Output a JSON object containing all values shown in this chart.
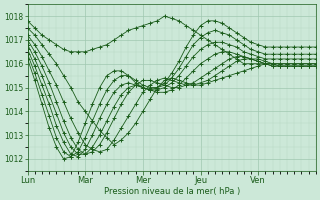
{
  "bg_color": "#cce8d8",
  "plot_bg": "#cce8d8",
  "grid_color_major": "#a0c8b0",
  "grid_color_minor": "#b8d8c0",
  "line_color": "#1a5c1a",
  "xlabel": "Pression niveau de la mer( hPa )",
  "ylim": [
    1011.5,
    1018.5
  ],
  "yticks": [
    1012,
    1013,
    1014,
    1015,
    1016,
    1017,
    1018
  ],
  "day_labels": [
    "Lun",
    "Mar",
    "Mer",
    "Jeu",
    "Ven"
  ],
  "day_positions": [
    0,
    24,
    48,
    72,
    96
  ],
  "figsize": [
    3.2,
    2.0
  ],
  "dpi": 100,
  "series": [
    {
      "x": [
        0,
        3,
        6,
        9,
        12,
        15,
        18,
        21,
        24,
        27,
        30,
        33,
        36,
        39,
        42,
        45,
        48,
        51,
        54,
        57,
        60,
        63,
        66,
        69,
        72,
        75,
        78,
        81,
        84,
        87,
        90,
        93,
        96,
        99,
        102,
        105,
        108,
        111,
        114,
        117,
        120
      ],
      "y": [
        1017.8,
        1017.5,
        1017.2,
        1017.0,
        1016.8,
        1016.6,
        1016.5,
        1016.5,
        1016.5,
        1016.6,
        1016.7,
        1016.8,
        1017.0,
        1017.2,
        1017.4,
        1017.5,
        1017.6,
        1017.7,
        1017.8,
        1018.0,
        1017.9,
        1017.8,
        1017.6,
        1017.4,
        1017.2,
        1017.0,
        1016.8,
        1016.6,
        1016.4,
        1016.2,
        1016.0,
        1016.0,
        1016.0,
        1016.0,
        1016.0,
        1016.0,
        1016.0,
        1016.0,
        1016.0,
        1016.0,
        1016.0
      ]
    },
    {
      "x": [
        0,
        3,
        6,
        9,
        12,
        15,
        18,
        21,
        24,
        27,
        30,
        33,
        36,
        39,
        42,
        45,
        48,
        51,
        54,
        57,
        60,
        63,
        66,
        69,
        72,
        75,
        78,
        81,
        84,
        87,
        90,
        93,
        96,
        99,
        102,
        105,
        108,
        111,
        114,
        117,
        120
      ],
      "y": [
        1017.5,
        1017.2,
        1016.8,
        1016.4,
        1016.0,
        1015.5,
        1015.0,
        1014.4,
        1014.0,
        1013.6,
        1013.2,
        1012.9,
        1012.6,
        1012.8,
        1013.1,
        1013.5,
        1014.0,
        1014.5,
        1015.0,
        1015.3,
        1015.4,
        1015.3,
        1015.2,
        1015.1,
        1015.1,
        1015.2,
        1015.3,
        1015.4,
        1015.5,
        1015.6,
        1015.7,
        1015.8,
        1015.9,
        1016.0,
        1016.0,
        1016.0,
        1016.0,
        1016.0,
        1016.0,
        1016.0,
        1016.0
      ]
    },
    {
      "x": [
        0,
        3,
        6,
        9,
        12,
        15,
        18,
        21,
        24,
        27,
        30,
        33,
        36,
        39,
        42,
        45,
        48,
        51,
        54,
        57,
        60,
        63,
        66,
        69,
        72,
        75,
        78,
        81,
        84,
        87,
        90,
        93,
        96,
        99,
        102,
        105,
        108,
        111,
        114,
        117,
        120
      ],
      "y": [
        1017.2,
        1016.8,
        1016.3,
        1015.7,
        1015.1,
        1014.4,
        1013.7,
        1013.1,
        1012.6,
        1012.4,
        1012.3,
        1012.4,
        1012.8,
        1013.3,
        1013.8,
        1014.3,
        1014.8,
        1015.1,
        1015.3,
        1015.4,
        1015.3,
        1015.2,
        1015.1,
        1015.1,
        1015.2,
        1015.3,
        1015.5,
        1015.7,
        1015.9,
        1016.1,
        1016.2,
        1016.2,
        1016.2,
        1016.1,
        1016.0,
        1015.9,
        1015.9,
        1015.9,
        1015.9,
        1015.9,
        1015.9
      ]
    },
    {
      "x": [
        0,
        3,
        6,
        9,
        12,
        15,
        18,
        21,
        24,
        27,
        30,
        33,
        36,
        39,
        42,
        45,
        48,
        51,
        54,
        57,
        60,
        63,
        66,
        69,
        72,
        75,
        78,
        81,
        84,
        87,
        90,
        93,
        96,
        99,
        102,
        105,
        108,
        111,
        114,
        117,
        120
      ],
      "y": [
        1017.0,
        1016.5,
        1015.9,
        1015.2,
        1014.4,
        1013.6,
        1012.9,
        1012.4,
        1012.2,
        1012.3,
        1012.6,
        1013.1,
        1013.7,
        1014.3,
        1014.8,
        1015.1,
        1015.3,
        1015.3,
        1015.2,
        1015.1,
        1015.0,
        1015.0,
        1015.1,
        1015.2,
        1015.4,
        1015.6,
        1015.8,
        1016.0,
        1016.2,
        1016.3,
        1016.3,
        1016.2,
        1016.1,
        1016.0,
        1015.9,
        1015.9,
        1015.9,
        1015.9,
        1015.9,
        1015.9,
        1015.9
      ]
    },
    {
      "x": [
        0,
        3,
        6,
        9,
        12,
        15,
        18,
        21,
        24,
        27,
        30,
        33,
        36,
        39,
        42,
        45,
        48,
        51,
        54,
        57,
        60,
        63,
        66,
        69,
        72,
        75,
        78,
        81,
        84,
        87,
        90,
        93,
        96,
        99,
        102,
        105,
        108,
        111,
        114,
        117,
        120
      ],
      "y": [
        1016.8,
        1016.2,
        1015.5,
        1014.7,
        1013.9,
        1013.1,
        1012.5,
        1012.2,
        1012.2,
        1012.5,
        1013.0,
        1013.6,
        1014.2,
        1014.7,
        1015.0,
        1015.1,
        1015.0,
        1014.9,
        1014.8,
        1014.8,
        1014.9,
        1015.1,
        1015.4,
        1015.7,
        1016.0,
        1016.2,
        1016.4,
        1016.5,
        1016.5,
        1016.4,
        1016.3,
        1016.2,
        1016.1,
        1016.0,
        1015.9,
        1015.9,
        1015.9,
        1015.9,
        1015.9,
        1015.9,
        1015.9
      ]
    },
    {
      "x": [
        0,
        3,
        6,
        9,
        12,
        15,
        18,
        21,
        24,
        27,
        30,
        33,
        36,
        39,
        42,
        45,
        48,
        51,
        54,
        57,
        60,
        63,
        66,
        69,
        72,
        75,
        78,
        81,
        84,
        87,
        90,
        93,
        96,
        99,
        102,
        105,
        108,
        111,
        114,
        117,
        120
      ],
      "y": [
        1016.6,
        1015.9,
        1015.1,
        1014.3,
        1013.4,
        1012.7,
        1012.2,
        1012.1,
        1012.4,
        1013.0,
        1013.7,
        1014.3,
        1014.8,
        1015.1,
        1015.2,
        1015.1,
        1015.0,
        1014.9,
        1014.9,
        1015.0,
        1015.2,
        1015.5,
        1015.9,
        1016.3,
        1016.6,
        1016.8,
        1016.9,
        1016.9,
        1016.8,
        1016.7,
        1016.5,
        1016.4,
        1016.3,
        1016.2,
        1016.2,
        1016.2,
        1016.2,
        1016.2,
        1016.2,
        1016.2,
        1016.2
      ]
    },
    {
      "x": [
        0,
        3,
        6,
        9,
        12,
        15,
        18,
        21,
        24,
        27,
        30,
        33,
        36,
        39,
        42,
        45,
        48,
        51,
        54,
        57,
        60,
        63,
        66,
        69,
        72,
        75,
        78,
        81,
        84,
        87,
        90,
        93,
        96,
        99,
        102,
        105,
        108,
        111,
        114,
        117,
        120
      ],
      "y": [
        1016.4,
        1015.6,
        1014.7,
        1013.8,
        1012.9,
        1012.3,
        1012.1,
        1012.3,
        1012.9,
        1013.6,
        1014.3,
        1014.9,
        1015.3,
        1015.5,
        1015.5,
        1015.3,
        1015.1,
        1015.0,
        1015.0,
        1015.1,
        1015.4,
        1015.8,
        1016.3,
        1016.8,
        1017.1,
        1017.3,
        1017.4,
        1017.3,
        1017.2,
        1017.0,
        1016.8,
        1016.6,
        1016.5,
        1016.4,
        1016.4,
        1016.4,
        1016.4,
        1016.4,
        1016.4,
        1016.4,
        1016.4
      ]
    },
    {
      "x": [
        0,
        3,
        6,
        9,
        12,
        15,
        18,
        21,
        24,
        27,
        30,
        33,
        36,
        39,
        42,
        45,
        48,
        51,
        54,
        57,
        60,
        63,
        66,
        69,
        72,
        75,
        78,
        81,
        84,
        87,
        90,
        93,
        96,
        99,
        102,
        105,
        108,
        111,
        114,
        117,
        120
      ],
      "y": [
        1016.2,
        1015.3,
        1014.3,
        1013.3,
        1012.5,
        1012.0,
        1012.1,
        1012.7,
        1013.5,
        1014.3,
        1015.0,
        1015.5,
        1015.7,
        1015.7,
        1015.5,
        1015.2,
        1015.0,
        1014.9,
        1015.0,
        1015.2,
        1015.6,
        1016.1,
        1016.7,
        1017.2,
        1017.6,
        1017.8,
        1017.8,
        1017.7,
        1017.5,
        1017.3,
        1017.1,
        1016.9,
        1016.8,
        1016.7,
        1016.7,
        1016.7,
        1016.7,
        1016.7,
        1016.7,
        1016.7,
        1016.7
      ]
    }
  ]
}
